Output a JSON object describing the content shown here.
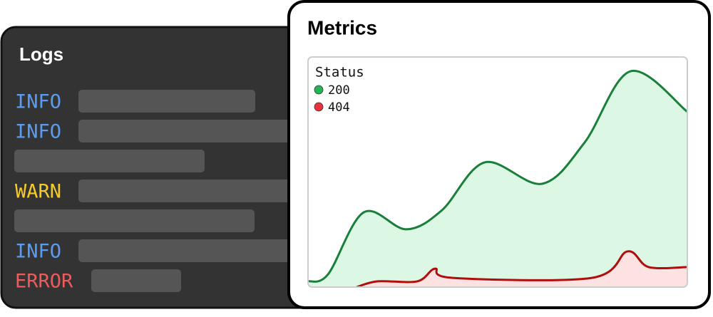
{
  "logs": {
    "title": "Logs",
    "levels": [
      "INFO",
      "INFO",
      "WARN",
      "INFO",
      "ERROR"
    ]
  },
  "metrics": {
    "title": "Metrics",
    "chart_data": {
      "type": "area",
      "legend_title": "Status",
      "legend": "top-left",
      "xlim": [
        0,
        100
      ],
      "ylim": [
        0,
        100
      ],
      "series": [
        {
          "name": "200",
          "color": "#22b455",
          "line_color": "#1a7f3a",
          "fill_color": "#dcf7e4",
          "x": [
            0,
            5.3,
            14.7,
            25.9,
            35.3,
            46.6,
            61.7,
            72.9,
            85.0,
            100
          ],
          "values": [
            2.5,
            5.6,
            32.5,
            25.1,
            33.4,
            54.2,
            44.9,
            62.8,
            93.8,
            76.2
          ]
        },
        {
          "name": "404",
          "color": "#e8333b",
          "line_color": "#b00d0d",
          "fill_color": "#fde2e2",
          "x": [
            12.8,
            18.4,
            28.8,
            33.5,
            38.2,
            74.8,
            84.2,
            89.8,
            100
          ],
          "values": [
            0,
            2.5,
            2.5,
            8.0,
            4.0,
            4.0,
            15.5,
            8.7,
            8.7
          ]
        }
      ]
    }
  }
}
